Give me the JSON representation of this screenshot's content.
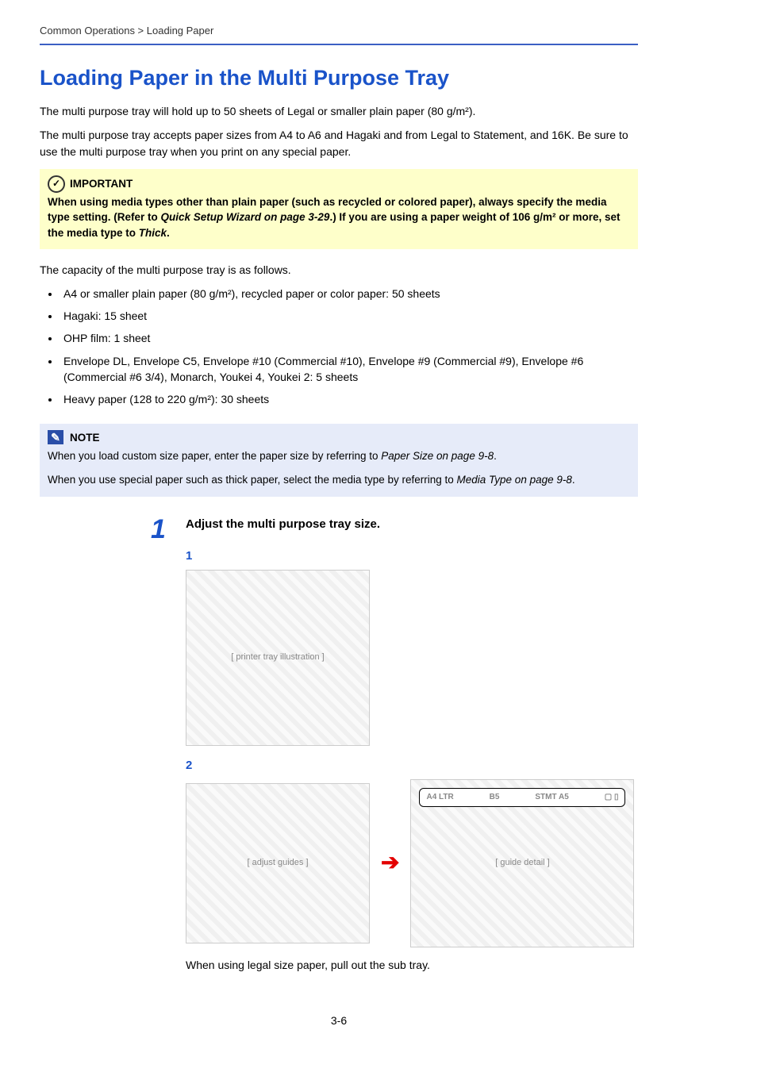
{
  "breadcrumb": "Common Operations > Loading Paper",
  "title": "Loading Paper in the Multi Purpose Tray",
  "intro1": "The multi purpose tray will hold up to 50 sheets of Legal or smaller plain paper (80 g/m²).",
  "intro2": "The multi purpose tray accepts paper sizes from A4 to A6 and Hagaki and from Legal to Statement, and 16K. Be sure to use the multi purpose tray when you print on any special paper.",
  "important": {
    "label": "IMPORTANT",
    "body_pre": "When using media types other than plain paper (such as recycled or colored paper), always specify the media type setting. (Refer to ",
    "ref1": "Quick Setup Wizard on page 3-29",
    "body_mid": ".) If you are using a paper weight of 106 g/m² or more, set the media type to ",
    "ref2": "Thick",
    "body_post": "."
  },
  "capacity_intro": "The capacity of the multi purpose tray is as follows.",
  "capacity": [
    "A4 or smaller plain paper (80 g/m²), recycled paper or color paper: 50 sheets",
    "Hagaki: 15 sheet",
    "OHP film: 1 sheet",
    "Envelope DL, Envelope C5, Envelope #10 (Commercial #10), Envelope #9 (Commercial #9), Envelope #6 (Commercial #6 3/4), Monarch, Youkei 4, Youkei 2: 5 sheets",
    "Heavy paper (128 to 220 g/m²): 30 sheets"
  ],
  "note": {
    "label": "NOTE",
    "line1_pre": "When you load custom size paper, enter the paper size by referring to ",
    "line1_ref": "Paper Size on page 9-8",
    "line1_post": ".",
    "line2_pre": "When you use special paper such as thick paper, select the media type by referring to ",
    "line2_ref": "Media Type on page 9-8",
    "line2_post": "."
  },
  "step": {
    "num": "1",
    "title": "Adjust the multi purpose tray size.",
    "sub1": "1",
    "sub2": "2",
    "guide_labels": {
      "a": "A4\nLTR",
      "b": "B5",
      "c": "STMT\nA5"
    },
    "caption": "When using legal size paper, pull out the sub tray."
  },
  "page_num": "3-6",
  "colors": {
    "heading": "#1a53c9",
    "rule": "#3b5fc4",
    "important_bg": "#feffca",
    "note_bg": "#e6ebf9",
    "red_arrow": "#e30000"
  }
}
